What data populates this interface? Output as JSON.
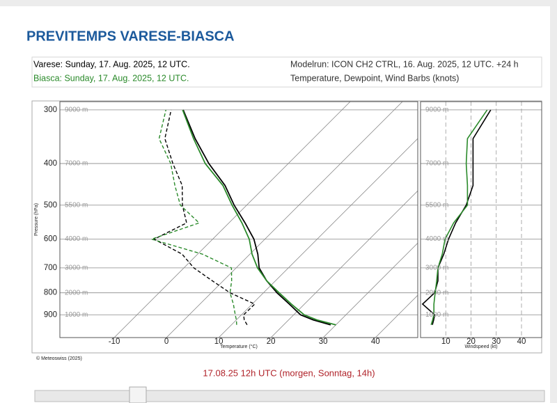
{
  "page": {
    "title": "PREVITEMPS VARESE-BIASCA",
    "modelrun": "Modelrun: ICON CH2 CTRL, 16. Aug. 2025, 12 UTC. +24 h",
    "description": "Temperature, Dewpoint, Wind Barbs (knots)",
    "copyright": "© Meteoswiss (2025)",
    "time_label": "17.08.25 12h UTC (morgen, Sonntag, 14h)"
  },
  "chart_data": [
    {
      "type": "skewt",
      "xlabel": "Temperature (°C)",
      "ylabel": "Pressure (hPa)",
      "xlim": [
        -20.4,
        48.1
      ],
      "xticks": [
        -10,
        0,
        10,
        20,
        30,
        40
      ],
      "ylim": [
        1017,
        287
      ],
      "yticks": [
        300,
        400,
        500,
        600,
        700,
        800,
        900
      ],
      "yscale": "log",
      "grid": true,
      "altitude_labels": [
        "9000 m",
        "7000 m",
        "5500 m",
        "4000 m",
        "3000 m",
        "2000 m",
        "1000 m"
      ],
      "pressure": [
        950,
        925,
        900,
        850,
        800,
        750,
        700,
        650,
        600,
        550,
        500,
        450,
        400,
        350,
        300
      ],
      "series": [
        {
          "name": "Varese: Sunday, 17. Aug. 2025, 12 UTC.",
          "color": "#000000",
          "temperature": [
            29.0,
            24.7,
            21.3,
            17.1,
            12.6,
            8.3,
            4.4,
            1.5,
            -2.1,
            -6.9,
            -12.4,
            -17.9,
            -25.2,
            -32.6,
            -40.4
          ],
          "dewpoint": [
            13.0,
            11.5,
            10.4,
            10.5,
            3.6,
            -2.1,
            -8.1,
            -13.0,
            -21.2,
            -18.1,
            -22.3,
            -26.1,
            -32.1,
            -38.4,
            -42.7
          ]
        },
        {
          "name": "Biasca: Sunday, 17. Aug. 2025, 12 UTC.",
          "color": "#2a8a2a",
          "temperature": [
            30.0,
            25.4,
            22.0,
            17.5,
            13.0,
            8.3,
            4.1,
            0.4,
            -3.0,
            -7.5,
            -12.8,
            -18.3,
            -25.9,
            -32.9,
            -40.5
          ],
          "dewpoint": [
            11.0,
            10.0,
            8.8,
            6.4,
            3.6,
            1.6,
            -0.9,
            -9.1,
            -21.7,
            -15.7,
            -22.7,
            -27.5,
            -32.5,
            -39.5,
            -43.7
          ]
        }
      ]
    },
    {
      "type": "wind",
      "xlabel": "Windspeed (kt)",
      "xlim": [
        0,
        48
      ],
      "xticks": [
        10,
        20,
        30,
        40
      ],
      "ylim": [
        1017,
        287
      ],
      "yticks": [
        300,
        400,
        500,
        600,
        700,
        800,
        900
      ],
      "yscale": "log",
      "grid": true,
      "altitude_labels": [
        "9000 m",
        "7000 m",
        "5500 m",
        "4000 m",
        "3000 m",
        "2000 m",
        "1000 m"
      ],
      "pressure": [
        950,
        925,
        900,
        850,
        800,
        750,
        700,
        650,
        600,
        550,
        500,
        450,
        400,
        350,
        300
      ],
      "series": [
        {
          "color": "#000000",
          "values": [
            4.7,
            5.2,
            5.6,
            0.8,
            5.6,
            6.9,
            6.9,
            9.2,
            11.1,
            13.9,
            18.1,
            20.8,
            20.8,
            20.8,
            27.8
          ]
        },
        {
          "color": "#2a8a2a",
          "values": [
            4.2,
            4.8,
            5.3,
            5.3,
            5.8,
            6.4,
            6.9,
            8.6,
            9.7,
            13.1,
            18.6,
            18.6,
            18.1,
            18.6,
            26.4
          ]
        }
      ]
    }
  ]
}
